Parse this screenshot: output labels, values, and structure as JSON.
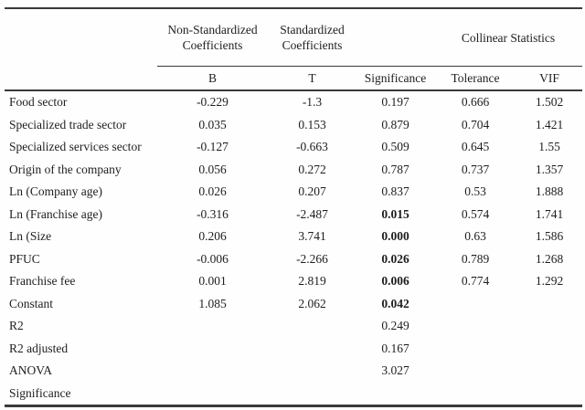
{
  "table": {
    "header_groups": {
      "non_standardized": "Non-Standardized Coefficients",
      "standardized": "Standardized Coefficients",
      "collinear": "Collinear Statistics"
    },
    "columns": {
      "b": "B",
      "t": "T",
      "significance": "Significance",
      "tolerance": "Tolerance",
      "vif": "VIF"
    },
    "rows": [
      {
        "label": "Food sector",
        "b": "-0.229",
        "t": "-1.3",
        "sig": "0.197",
        "sig_bold": false,
        "tolerance": "0.666",
        "vif": "1.502"
      },
      {
        "label": "Specialized trade sector",
        "b": "0.035",
        "t": "0.153",
        "sig": "0.879",
        "sig_bold": false,
        "tolerance": "0.704",
        "vif": "1.421"
      },
      {
        "label": "Specialized services sector",
        "b": "-0.127",
        "t": "-0.663",
        "sig": "0.509",
        "sig_bold": false,
        "tolerance": "0.645",
        "vif": "1.55"
      },
      {
        "label": "Origin of the company",
        "b": "0.056",
        "t": "0.272",
        "sig": "0.787",
        "sig_bold": false,
        "tolerance": "0.737",
        "vif": "1.357"
      },
      {
        "label": "Ln (Company age)",
        "b": "0.026",
        "t": "0.207",
        "sig": "0.837",
        "sig_bold": false,
        "tolerance": "0.53",
        "vif": "1.888"
      },
      {
        "label": "Ln (Franchise age)",
        "b": "-0.316",
        "t": "-2.487",
        "sig": "0.015",
        "sig_bold": true,
        "tolerance": "0.574",
        "vif": "1.741"
      },
      {
        "label": "Ln (Size",
        "b": "0.206",
        "t": "3.741",
        "sig": "0.000",
        "sig_bold": true,
        "tolerance": "0.63",
        "vif": "1.586"
      },
      {
        "label": "PFUC",
        "b": "-0.006",
        "t": "-2.266",
        "sig": "0.026",
        "sig_bold": true,
        "tolerance": "0.789",
        "vif": "1.268"
      },
      {
        "label": "Franchise fee",
        "b": "0.001",
        "t": "2.819",
        "sig": "0.006",
        "sig_bold": true,
        "tolerance": "0.774",
        "vif": "1.292"
      },
      {
        "label": "Constant",
        "b": "1.085",
        "t": "2.062",
        "sig": "0.042",
        "sig_bold": true,
        "tolerance": "",
        "vif": ""
      },
      {
        "label": "R2",
        "b": "",
        "t": "",
        "sig": "0.249",
        "sig_bold": false,
        "tolerance": "",
        "vif": ""
      },
      {
        "label": "R2 adjusted",
        "b": "",
        "t": "",
        "sig": "0.167",
        "sig_bold": false,
        "tolerance": "",
        "vif": ""
      },
      {
        "label": "ANOVA",
        "b": "",
        "t": "",
        "sig": "3.027",
        "sig_bold": false,
        "tolerance": "",
        "vif": ""
      },
      {
        "label": "Significance",
        "b": "",
        "t": "",
        "sig": "",
        "sig_bold": false,
        "tolerance": "",
        "vif": ""
      }
    ]
  }
}
